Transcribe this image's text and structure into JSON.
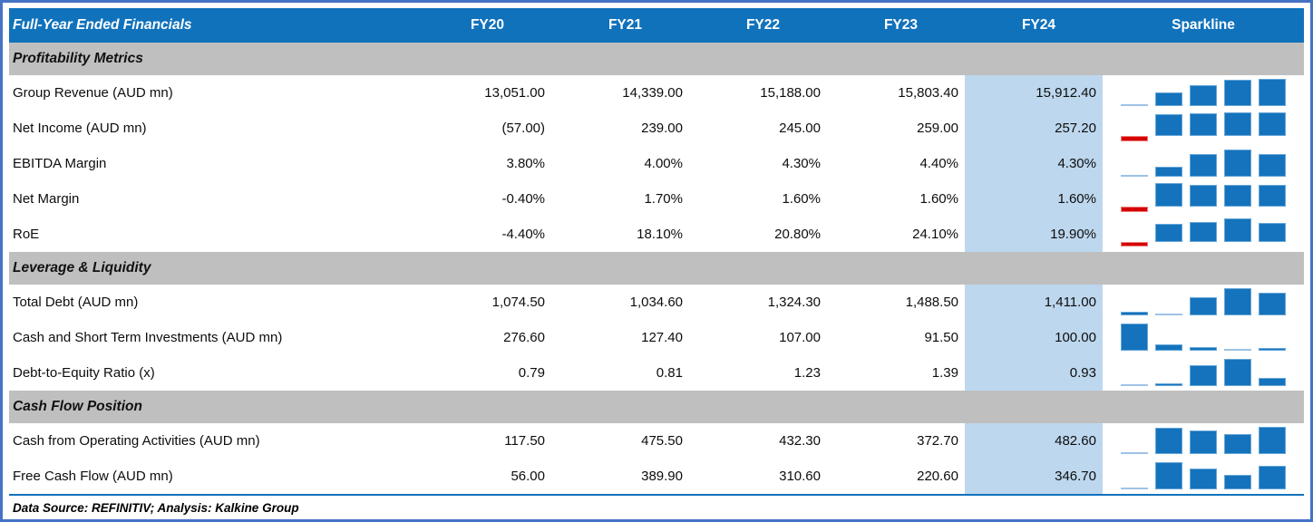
{
  "footer": {
    "text": "Data Source: REFINITIV; Analysis: Kalkine Group"
  },
  "colors": {
    "frame_border": "#4472C4",
    "header_bg": "#1172BC",
    "header_text": "#FFFFFF",
    "section_bg": "#BFBFBF",
    "highlight_bg": "#BDD7EE",
    "sparkline_blue": "#1473BC",
    "sparkline_low_light_blue": "#9DC3E6",
    "sparkline_negative_red": "#D40000"
  },
  "chart_data": {
    "type": "table",
    "title": "Full-Year Ended Financials",
    "columns": [
      "FY20",
      "FY21",
      "FY22",
      "FY23",
      "FY24",
      "Sparkline"
    ],
    "highlight_column": "FY24",
    "sparkline_type": "bar",
    "rows": [
      {
        "type": "section",
        "label": "Profitability Metrics"
      },
      {
        "type": "data",
        "label": "Group Revenue (AUD mn)",
        "values": [
          "13,051.00",
          "14,339.00",
          "15,188.00",
          "15,803.40",
          "15,912.40"
        ],
        "spark": [
          13051.0,
          14339.0,
          15188.0,
          15803.4,
          15912.4
        ]
      },
      {
        "type": "data",
        "label": "Net Income (AUD mn)",
        "values": [
          "(57.00)",
          "239.00",
          "245.00",
          "259.00",
          "257.20"
        ],
        "spark": [
          -57.0,
          239.0,
          245.0,
          259.0,
          257.2
        ]
      },
      {
        "type": "data",
        "label": "EBITDA Margin",
        "values": [
          "3.80%",
          "4.00%",
          "4.30%",
          "4.40%",
          "4.30%"
        ],
        "spark": [
          3.8,
          4.0,
          4.3,
          4.4,
          4.3
        ]
      },
      {
        "type": "data",
        "label": "Net Margin",
        "values": [
          "-0.40%",
          "1.70%",
          "1.60%",
          "1.60%",
          "1.60%"
        ],
        "spark": [
          -0.4,
          1.7,
          1.6,
          1.6,
          1.6
        ]
      },
      {
        "type": "data",
        "label": "RoE",
        "values": [
          "-4.40%",
          "18.10%",
          "20.80%",
          "24.10%",
          "19.90%"
        ],
        "spark": [
          -4.4,
          18.1,
          20.8,
          24.1,
          19.9
        ]
      },
      {
        "type": "section",
        "label": "Leverage & Liquidity"
      },
      {
        "type": "data",
        "label": "Total Debt (AUD mn)",
        "values": [
          "1,074.50",
          "1,034.60",
          "1,324.30",
          "1,488.50",
          "1,411.00"
        ],
        "spark": [
          1074.5,
          1034.6,
          1324.3,
          1488.5,
          1411.0
        ]
      },
      {
        "type": "data",
        "label": "Cash and Short Term Investments (AUD mn)",
        "values": [
          "276.60",
          "127.40",
          "107.00",
          "91.50",
          "100.00"
        ],
        "spark": [
          276.6,
          127.4,
          107.0,
          91.5,
          100.0
        ]
      },
      {
        "type": "data",
        "label": "Debt-to-Equity Ratio (x)",
        "values": [
          "0.79",
          "0.81",
          "1.23",
          "1.39",
          "0.93"
        ],
        "spark": [
          0.79,
          0.81,
          1.23,
          1.39,
          0.93
        ]
      },
      {
        "type": "section",
        "label": "Cash Flow Position"
      },
      {
        "type": "data",
        "label": "Cash from Operating Activities (AUD mn)",
        "values": [
          "117.50",
          "475.50",
          "432.30",
          "372.70",
          "482.60"
        ],
        "spark": [
          117.5,
          475.5,
          432.3,
          372.7,
          482.6
        ]
      },
      {
        "type": "data",
        "label": "Free Cash Flow (AUD mn)",
        "values": [
          "56.00",
          "389.90",
          "310.60",
          "220.60",
          "346.70"
        ],
        "spark": [
          56.0,
          389.9,
          310.6,
          220.6,
          346.7
        ]
      }
    ]
  }
}
